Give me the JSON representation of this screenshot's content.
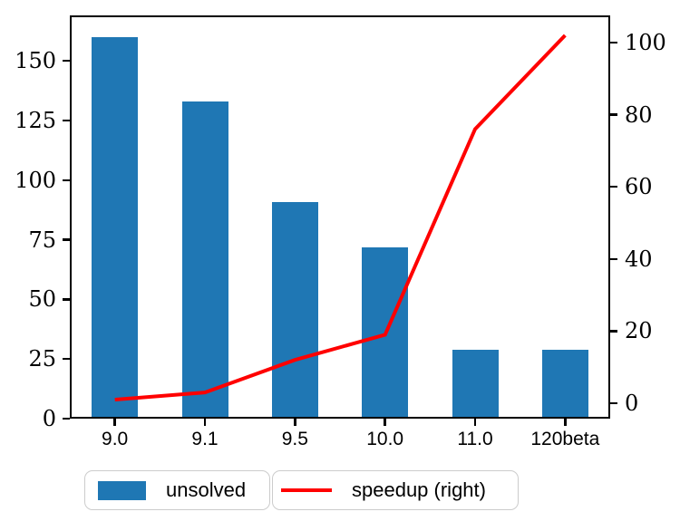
{
  "chart_data": {
    "type": "bar",
    "subtype": "bar-and-line-combo",
    "categories": [
      "9.0",
      "9.1",
      "9.5",
      "10.0",
      "11.0",
      "120beta"
    ],
    "series": [
      {
        "name": "unsolved",
        "plot_type": "bar",
        "axis": "left",
        "color": "#1f77b4",
        "values": [
          160,
          133,
          91,
          72,
          29,
          29
        ]
      },
      {
        "name": "speedup (right)",
        "plot_type": "line",
        "axis": "right",
        "color": "#ff0000",
        "values": [
          1,
          3,
          12,
          19,
          76,
          102
        ]
      }
    ],
    "title": "",
    "xlabel": "",
    "ylabel_left": "",
    "ylabel_right": "",
    "left_axis": {
      "ticks": [
        0,
        25,
        50,
        75,
        100,
        125,
        150
      ],
      "ylim": [
        0,
        169
      ]
    },
    "right_axis": {
      "ticks": [
        0,
        20,
        40,
        60,
        80,
        100
      ],
      "ylim": [
        -4.3,
        107.8
      ]
    },
    "grid": false,
    "legend_position": "below-plot",
    "legend_entries": [
      "unsolved",
      "speedup (right)"
    ],
    "frame_color": "#000000",
    "legend_border_color": "#cccccc"
  }
}
